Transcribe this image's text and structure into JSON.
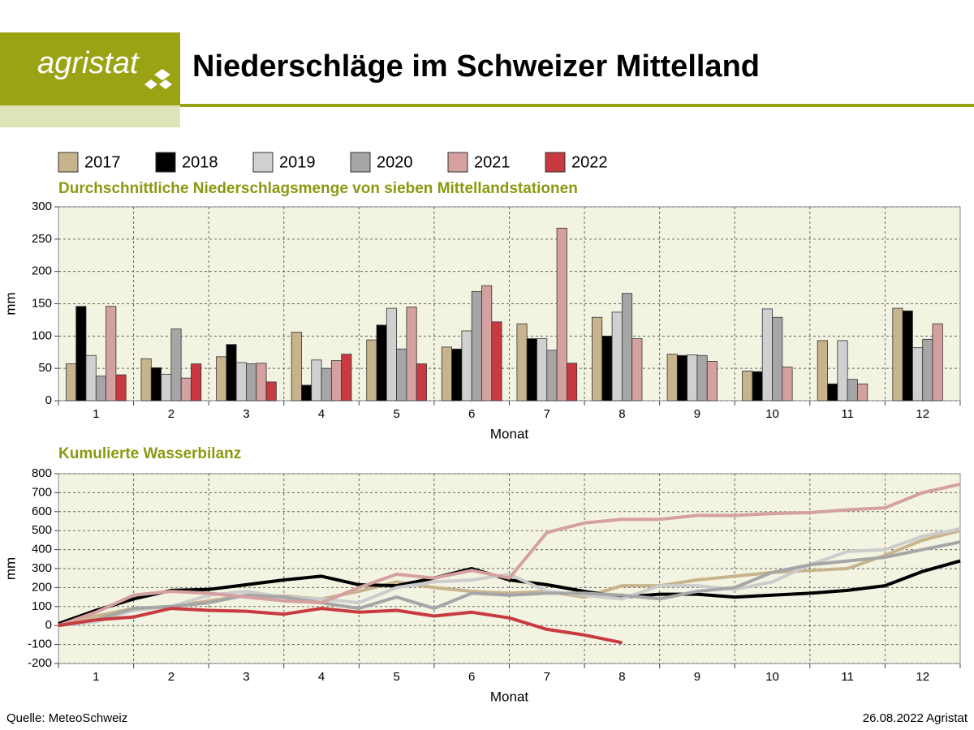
{
  "header": {
    "logo": "agristat",
    "title": "Niederschläge im Schweizer Mittelland"
  },
  "footer": {
    "source": "Quelle: MeteoSchweiz",
    "date": "26.08.2022 Agristat"
  },
  "chart_data": [
    {
      "type": "bar",
      "title": "Durchschnittliche Niederschlagsmenge von sieben Mittellandstationen",
      "x_label": "Monat",
      "y_label": "mm",
      "categories": [
        "1",
        "2",
        "3",
        "4",
        "5",
        "6",
        "7",
        "8",
        "9",
        "10",
        "11",
        "12"
      ],
      "ylim": [
        0,
        300
      ],
      "yticks": [
        0,
        50,
        100,
        150,
        200,
        250,
        300
      ],
      "grid": true,
      "series": [
        {
          "name": "2017",
          "color": "#c8b48c",
          "values": [
            57,
            65,
            68,
            106,
            94,
            83,
            119,
            129,
            72,
            46,
            93,
            143
          ]
        },
        {
          "name": "2018",
          "color": "#000000",
          "values": [
            146,
            51,
            87,
            24,
            117,
            80,
            96,
            100,
            70,
            45,
            26,
            139
          ]
        },
        {
          "name": "2019",
          "color": "#d0d0d0",
          "values": [
            70,
            41,
            59,
            63,
            143,
            108,
            96,
            137,
            71,
            142,
            93,
            82
          ]
        },
        {
          "name": "2020",
          "color": "#a6a6a6",
          "values": [
            38,
            111,
            57,
            50,
            80,
            169,
            78,
            166,
            70,
            129,
            33,
            95
          ]
        },
        {
          "name": "2021",
          "color": "#d4a0a0",
          "values": [
            146,
            35,
            58,
            62,
            145,
            178,
            267,
            96,
            61,
            52,
            26,
            119
          ]
        },
        {
          "name": "2022",
          "color": "#c83a40",
          "values": [
            40,
            57,
            29,
            72,
            57,
            122,
            58,
            null,
            null,
            null,
            null,
            null
          ]
        }
      ]
    },
    {
      "type": "line",
      "title": "Kumulierte Wasserbilanz",
      "x_label": "Monat",
      "y_label": "mm",
      "x": [
        0.5,
        1,
        1.5,
        2,
        2.5,
        3,
        3.5,
        4,
        4.5,
        5,
        5.5,
        6,
        6.5,
        7,
        7.5,
        8,
        8.5,
        9,
        9.5,
        10,
        10.5,
        11,
        11.5,
        12,
        12.5
      ],
      "xlim": [
        0.5,
        12.5
      ],
      "xticks": [
        1,
        2,
        3,
        4,
        5,
        6,
        7,
        8,
        9,
        10,
        11,
        12
      ],
      "ylim": [
        -200,
        800
      ],
      "yticks": [
        -200,
        -100,
        0,
        100,
        200,
        300,
        400,
        500,
        600,
        700,
        800
      ],
      "grid": true,
      "series": [
        {
          "color": "#c8b48c",
          "values": [
            0,
            50,
            90,
            100,
            130,
            160,
            155,
            140,
            180,
            230,
            200,
            180,
            170,
            180,
            150,
            210,
            210,
            240,
            260,
            280,
            290,
            300,
            370,
            450,
            500
          ]
        },
        {
          "color": "#000000",
          "values": [
            10,
            80,
            140,
            185,
            190,
            215,
            240,
            260,
            215,
            210,
            250,
            300,
            240,
            215,
            180,
            150,
            165,
            165,
            150,
            160,
            170,
            185,
            210,
            285,
            340
          ]
        },
        {
          "color": "#cccccc",
          "values": [
            0,
            20,
            80,
            100,
            160,
            180,
            150,
            140,
            120,
            200,
            230,
            240,
            270,
            180,
            160,
            140,
            210,
            210,
            190,
            230,
            320,
            390,
            400,
            470,
            510
          ]
        },
        {
          "color": "#a6a6a6",
          "values": [
            0,
            30,
            90,
            100,
            120,
            160,
            150,
            120,
            90,
            150,
            90,
            170,
            160,
            170,
            170,
            160,
            140,
            180,
            200,
            280,
            320,
            340,
            360,
            400,
            440
          ]
        },
        {
          "color": "#d4a0a0",
          "values": [
            0,
            70,
            160,
            180,
            170,
            150,
            130,
            120,
            200,
            270,
            250,
            290,
            250,
            490,
            540,
            560,
            560,
            580,
            580,
            590,
            595,
            610,
            620,
            700,
            745
          ]
        },
        {
          "color": "#c83a40",
          "values": [
            0,
            30,
            45,
            90,
            80,
            75,
            60,
            90,
            70,
            80,
            50,
            70,
            40,
            -20,
            -50,
            -90,
            null,
            null,
            null,
            null,
            null,
            null,
            null,
            null,
            null
          ]
        }
      ]
    }
  ]
}
